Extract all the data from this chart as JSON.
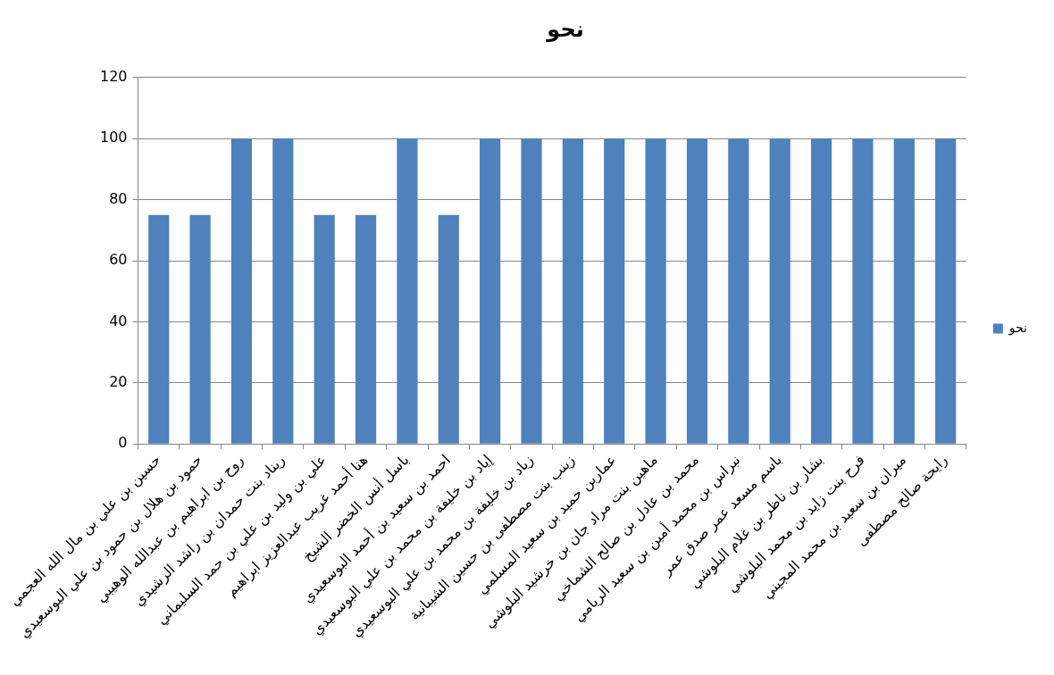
{
  "chart_data": {
    "type": "bar",
    "title": "نحو",
    "categories": [
      "حسين بن علي بن مال الله العجمي",
      "حمود بن هلال بن حمود بن علي البوسعيدي",
      "روح بن ابراهيم بن عبدالله الوهيبي",
      "ريناد بنت حمدان بن راشد الرشيدي",
      "علي بن وليد بن علي بن حمد السليماني",
      "هنا أحمد غريب عبدالعزيز ابراهيم",
      "باسل أنس الخضر الشيخ",
      "احمد بن سعيد بن أحمد البوسعيدي",
      "إياد بن خليفة بن محمد بن علي البوسعيدي",
      "زياد بن خليفة بن محمد بن علي البوسعيدي",
      "زينب بنت مصطفى بن حسين الشيبانية",
      "عماربن حميد بن سعيد المسلمي",
      "ماهين بنت مراد جان بن خرشيد البلوشي",
      "محمد بن عادل بن صالح الشماخي",
      "نبراس بن محمد أمين بن سعيد الريامي",
      "باسم مسعد عمر صدق عمر",
      "بشار بن ناظر بن غلام البلوشي",
      "فرح بنت زايد بن محمد البلوشي",
      "ميران بن سعيد بن محمد المجيني",
      "رايحة صالح مصطفى"
    ],
    "series": [
      {
        "name": "نحو",
        "color": "#4f81bd",
        "values": [
          75,
          75,
          100,
          100,
          75,
          75,
          100,
          75,
          100,
          100,
          100,
          100,
          100,
          100,
          100,
          100,
          100,
          100,
          100,
          100
        ]
      }
    ],
    "ylim": [
      0,
      120
    ],
    "yticks": [
      0,
      20,
      40,
      60,
      80,
      100,
      120
    ],
    "grid": "y",
    "legend": "right"
  }
}
